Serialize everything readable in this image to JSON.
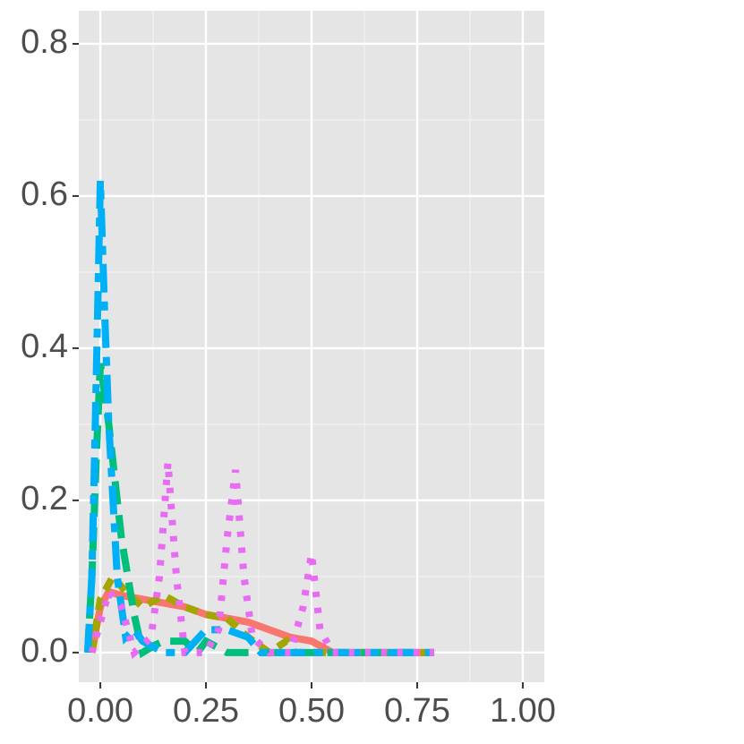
{
  "chart_data": {
    "type": "line",
    "xlim": [
      -0.051,
      1.051
    ],
    "ylim": [
      -0.039,
      0.8435
    ],
    "xticks": [
      {
        "value": 0,
        "label": "0.00"
      },
      0.25,
      {
        "value": 0.5,
        "label": "0.50"
      },
      0.75,
      {
        "value": 1,
        "label": "1.00"
      }
    ],
    "yticks": [
      {
        "value": 0,
        "label": "0.0"
      },
      0.2,
      0.4,
      0.6,
      0.8
    ],
    "xminorticks": [
      0.125,
      0.375,
      0.625,
      0.875
    ],
    "yminorticks": [
      0.1,
      0.3,
      0.5,
      0.7
    ],
    "grid": true,
    "series": [
      {
        "color": "#F8766D",
        "dash": "solid",
        "x": [
          -0.02,
          0,
          0.02,
          0.05,
          0.1,
          0.15,
          0.2,
          0.25,
          0.3,
          0.35,
          0.4,
          0.45,
          0.5,
          0.55,
          0.6,
          0.7,
          0.79
        ],
        "values": [
          0,
          0.06,
          0.08,
          0.075,
          0.07,
          0.065,
          0.06,
          0.05,
          0.045,
          0.04,
          0.03,
          0.02,
          0.015,
          0,
          0,
          0,
          0
        ]
      },
      {
        "color": "#A3A500",
        "dash": "dashed",
        "x": [
          -0.02,
          0,
          0.03,
          0.06,
          0.1,
          0.15,
          0.2,
          0.25,
          0.3,
          0.35,
          0.4,
          0.44,
          0.46,
          0.6,
          0.79
        ],
        "values": [
          0,
          0.07,
          0.1,
          0.08,
          0.06,
          0.075,
          0.06,
          0.05,
          0.045,
          0.02,
          0,
          0.015,
          0,
          0,
          0
        ]
      },
      {
        "color": "#00BF7D",
        "dash": "longdash",
        "x": [
          -0.03,
          -0.02,
          -0.01,
          0,
          0.02,
          0.05,
          0.08,
          0.1,
          0.13,
          0.15,
          0.2,
          0.23,
          0.25,
          0.3,
          0.4,
          0.5,
          0.79
        ],
        "values": [
          0,
          0.1,
          0.25,
          0.38,
          0.3,
          0.15,
          0.05,
          0,
          0.01,
          0.015,
          0.015,
          0,
          0.015,
          0,
          0,
          0,
          0
        ]
      },
      {
        "color": "#00B0F6",
        "dash": "twodash",
        "x": [
          -0.03,
          -0.02,
          -0.01,
          0,
          0.01,
          0.02,
          0.04,
          0.06,
          0.08,
          0.1,
          0.15,
          0.2,
          0.25,
          0.3,
          0.35,
          0.38,
          0.4,
          0.5,
          0.79
        ],
        "values": [
          0,
          0.1,
          0.35,
          0.62,
          0.45,
          0.3,
          0.1,
          0.02,
          0.03,
          0.015,
          0,
          0,
          0.03,
          0.03,
          0.02,
          0,
          0,
          0,
          0
        ]
      },
      {
        "color": "#E76BF3",
        "dash": "dotted",
        "x": [
          -0.02,
          0,
          0.02,
          0.05,
          0.08,
          0.12,
          0.14,
          0.16,
          0.18,
          0.2,
          0.25,
          0.28,
          0.3,
          0.32,
          0.34,
          0.36,
          0.4,
          0.45,
          0.48,
          0.5,
          0.52,
          0.55,
          0.6,
          0.79
        ],
        "values": [
          0,
          0.04,
          0.08,
          0.06,
          0,
          0.02,
          0.1,
          0.25,
          0.1,
          0,
          0,
          0.03,
          0.15,
          0.24,
          0.1,
          0.02,
          0,
          0,
          0.06,
          0.13,
          0.03,
          0,
          0,
          0
        ]
      }
    ]
  }
}
